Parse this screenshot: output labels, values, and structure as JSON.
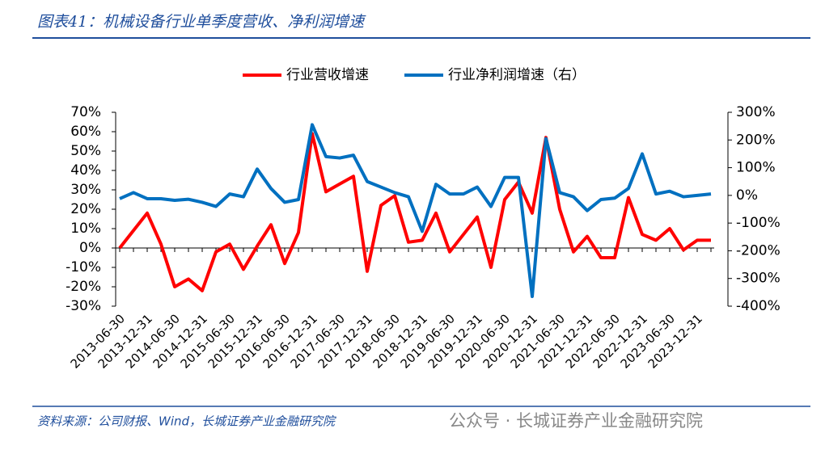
{
  "title": "图表41：机械设备行业单季度营收、净利润增速",
  "source": "资料来源：公司财报、Wind，长城证券产业金融研究院",
  "watermark": "公众号 · 长城证券产业金融研究院",
  "chart_data": {
    "type": "line",
    "categories": [
      "2013-06-30",
      null,
      "2013-12-31",
      null,
      "2014-06-30",
      null,
      "2014-12-31",
      null,
      "2015-06-30",
      null,
      "2015-12-31",
      null,
      "2016-06-30",
      null,
      "2016-12-31",
      null,
      "2017-06-30",
      null,
      "2017-12-31",
      null,
      "2018-06-30",
      null,
      "2018-12-31",
      null,
      "2019-06-30",
      null,
      "2019-12-31",
      null,
      "2020-06-30",
      null,
      "2020-12-31",
      null,
      "2021-06-30",
      null,
      "2021-12-31",
      null,
      "2022-06-30",
      null,
      "2022-12-31",
      null,
      "2023-06-30",
      null,
      "2023-12-31",
      null
    ],
    "series": [
      {
        "name": "行业营收增速",
        "color": "#ff0000",
        "values": [
          0,
          9,
          18,
          2,
          -20,
          -16,
          -22,
          -2,
          2,
          -11,
          1,
          12,
          -8,
          8,
          59,
          29,
          33,
          37,
          -12,
          22,
          27,
          3,
          4,
          18,
          -2,
          7,
          16,
          -10,
          25,
          34,
          18,
          57,
          20,
          -2,
          6,
          -5,
          -5,
          26,
          7,
          4,
          10,
          -1,
          4,
          4
        ]
      },
      {
        "name": "行业净利润增速（右）",
        "color": "#0070c0",
        "axis": "y2",
        "values": [
          -12,
          10,
          -12,
          -12,
          -18,
          -14,
          -25,
          -40,
          5,
          -5,
          95,
          25,
          -25,
          -15,
          255,
          140,
          135,
          145,
          50,
          30,
          10,
          -5,
          -130,
          40,
          5,
          5,
          30,
          -40,
          65,
          65,
          -365,
          205,
          10,
          -5,
          -55,
          -15,
          -10,
          25,
          150,
          5,
          15,
          -5,
          0,
          5
        ]
      }
    ],
    "ylim": [
      -30,
      70
    ],
    "yticks": [
      {
        "value": -30,
        "label": "-30%"
      },
      {
        "value": -20,
        "label": "-20%"
      },
      {
        "value": -10,
        "label": "-10%"
      },
      {
        "value": 0,
        "label": "0%"
      },
      {
        "value": 10,
        "label": "10%"
      },
      {
        "value": 20,
        "label": "20%"
      },
      {
        "value": 30,
        "label": "30%"
      },
      {
        "value": 40,
        "label": "40%"
      },
      {
        "value": 50,
        "label": "50%"
      },
      {
        "value": 60,
        "label": "60%"
      },
      {
        "value": 70,
        "label": "70%"
      }
    ],
    "y2lim": [
      -400,
      300
    ],
    "y2ticks": [
      {
        "value": -400,
        "label": "-400%"
      },
      {
        "value": -300,
        "label": "-300%"
      },
      {
        "value": -200,
        "label": "-200%"
      },
      {
        "value": -100,
        "label": "-100%"
      },
      {
        "value": 0,
        "label": "0%"
      },
      {
        "value": 100,
        "label": "100%"
      },
      {
        "value": 200,
        "label": "200%"
      },
      {
        "value": 300,
        "label": "300%"
      }
    ],
    "legend": "top"
  }
}
